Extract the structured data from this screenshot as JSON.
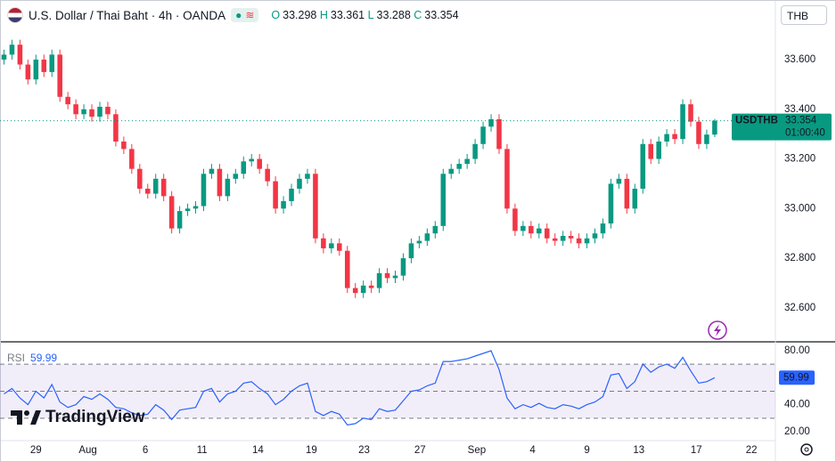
{
  "header": {
    "symbol": "U.S. Dollar / Thai Baht · 4h · OANDA",
    "currency": "THB",
    "ticker": "USDTHB",
    "countdown": "01:00:40",
    "brand": "TradingView",
    "ohlc_labels": [
      "O",
      "H",
      "L",
      "C"
    ]
  },
  "chart_data": [
    {
      "type": "candlestick",
      "open": [
        33.6,
        33.62,
        33.66,
        33.58,
        33.52,
        33.6,
        33.55,
        33.62,
        33.45,
        33.42,
        33.38,
        33.4,
        33.37,
        33.41,
        33.38,
        33.27,
        33.24,
        33.16,
        33.08,
        33.06,
        33.12,
        33.05,
        32.92,
        32.99,
        33.0,
        33.01,
        33.14,
        33.16,
        33.05,
        33.12,
        33.14,
        33.19,
        33.2,
        33.16,
        33.11,
        33.0,
        33.03,
        33.08,
        33.12,
        33.14,
        32.88,
        32.84,
        32.86,
        32.83,
        32.68,
        32.66,
        32.69,
        32.68,
        32.74,
        32.72,
        32.73,
        32.8,
        32.86,
        32.87,
        32.9,
        32.93,
        33.14,
        33.16,
        33.18,
        33.2,
        33.26,
        33.33,
        33.36,
        33.24,
        33.0,
        32.91,
        32.93,
        32.9,
        32.92,
        32.88,
        32.87,
        32.89,
        32.88,
        32.86,
        32.88,
        32.9,
        32.94,
        33.1,
        33.12,
        33.0,
        33.08,
        33.26,
        33.2,
        33.27,
        33.3,
        33.28,
        33.42,
        33.35,
        33.26,
        33.298
      ],
      "high": [
        33.64,
        33.68,
        33.68,
        33.6,
        33.62,
        33.62,
        33.64,
        33.64,
        33.47,
        33.44,
        33.42,
        33.42,
        33.43,
        33.43,
        33.4,
        33.29,
        33.26,
        33.18,
        33.1,
        33.14,
        33.14,
        33.07,
        33.01,
        33.02,
        33.03,
        33.16,
        33.18,
        33.18,
        33.14,
        33.16,
        33.21,
        33.22,
        33.22,
        33.18,
        33.13,
        33.05,
        33.1,
        33.14,
        33.16,
        33.16,
        32.9,
        32.88,
        32.88,
        32.85,
        32.7,
        32.71,
        32.71,
        32.76,
        32.76,
        32.75,
        32.82,
        32.88,
        32.89,
        32.92,
        32.95,
        33.16,
        33.18,
        33.2,
        33.22,
        33.28,
        33.35,
        33.38,
        33.38,
        33.26,
        33.02,
        32.95,
        32.95,
        32.94,
        32.94,
        32.9,
        32.91,
        32.91,
        32.9,
        32.9,
        32.92,
        32.96,
        33.12,
        33.14,
        33.14,
        33.1,
        33.28,
        33.28,
        33.29,
        33.32,
        33.32,
        33.44,
        33.44,
        33.37,
        33.318,
        33.361
      ],
      "low": [
        33.58,
        33.6,
        33.56,
        33.5,
        33.5,
        33.53,
        33.53,
        33.43,
        33.4,
        33.36,
        33.36,
        33.35,
        33.35,
        33.36,
        33.25,
        33.22,
        33.14,
        33.06,
        33.04,
        33.04,
        33.03,
        32.9,
        32.9,
        32.97,
        32.98,
        32.99,
        33.12,
        33.03,
        33.03,
        33.1,
        33.12,
        33.17,
        33.14,
        33.09,
        32.98,
        32.98,
        33.01,
        33.06,
        33.1,
        32.86,
        32.82,
        32.82,
        32.81,
        32.66,
        32.64,
        32.64,
        32.66,
        32.66,
        32.7,
        32.7,
        32.71,
        32.78,
        32.84,
        32.85,
        32.88,
        32.91,
        33.12,
        33.14,
        33.16,
        33.18,
        33.24,
        33.31,
        33.22,
        32.98,
        32.89,
        32.89,
        32.88,
        32.88,
        32.86,
        32.85,
        32.85,
        32.86,
        32.84,
        32.84,
        32.86,
        32.88,
        32.92,
        33.08,
        32.98,
        32.98,
        33.06,
        33.18,
        33.18,
        33.25,
        33.26,
        33.26,
        33.33,
        33.24,
        33.24,
        33.288
      ],
      "close": [
        33.62,
        33.66,
        33.58,
        33.52,
        33.6,
        33.55,
        33.62,
        33.45,
        33.42,
        33.38,
        33.4,
        33.37,
        33.41,
        33.38,
        33.27,
        33.24,
        33.16,
        33.08,
        33.06,
        33.12,
        33.05,
        32.92,
        32.99,
        33.0,
        33.01,
        33.14,
        33.16,
        33.05,
        33.12,
        33.14,
        33.19,
        33.2,
        33.16,
        33.11,
        33.0,
        33.03,
        33.08,
        33.12,
        33.14,
        32.88,
        32.84,
        32.86,
        32.83,
        32.68,
        32.66,
        32.69,
        32.68,
        32.74,
        32.72,
        32.73,
        32.8,
        32.86,
        32.87,
        32.9,
        32.93,
        33.14,
        33.16,
        33.18,
        33.2,
        33.26,
        33.33,
        33.36,
        33.24,
        33.0,
        32.91,
        32.93,
        32.9,
        32.92,
        32.88,
        32.87,
        32.89,
        32.88,
        32.86,
        32.88,
        32.9,
        32.94,
        33.1,
        33.12,
        33.0,
        33.08,
        33.26,
        33.2,
        33.27,
        33.3,
        33.28,
        33.42,
        33.35,
        33.26,
        33.298,
        33.354
      ],
      "up_color": "#089981",
      "down_color": "#f23645",
      "xlim": [
        -0.5,
        96.6
      ],
      "ylim": [
        32.467,
        33.84
      ],
      "yticks": [
        {
          "value": 32.6,
          "label": "32.600"
        },
        {
          "value": 32.8,
          "label": "32.800"
        },
        {
          "value": 33.0,
          "label": "33.000"
        },
        {
          "value": 33.2,
          "label": "33.200"
        },
        {
          "value": 33.4,
          "label": "33.400"
        },
        {
          "value": 33.6,
          "label": "33.600"
        }
      ],
      "xticks": [
        {
          "value": 4.0,
          "label": "29"
        },
        {
          "value": 10.5,
          "label": "Aug"
        },
        {
          "value": 17.7,
          "label": "6"
        },
        {
          "value": 24.8,
          "label": "11"
        },
        {
          "value": 31.8,
          "label": "14"
        },
        {
          "value": 38.5,
          "label": "19"
        },
        {
          "value": 45.1,
          "label": "23"
        },
        {
          "value": 52.1,
          "label": "27"
        },
        {
          "value": 59.2,
          "label": "Sep"
        },
        {
          "value": 66.2,
          "label": "4"
        },
        {
          "value": 73.0,
          "label": "9"
        },
        {
          "value": 79.5,
          "label": "13"
        },
        {
          "value": 86.7,
          "label": "17"
        },
        {
          "value": 93.6,
          "label": "22"
        }
      ]
    },
    {
      "type": "line",
      "name": "RSI",
      "color": "#2962ff",
      "values": [
        48,
        52,
        45,
        40,
        50,
        45,
        55,
        42,
        38,
        40,
        46,
        44,
        48,
        44,
        38,
        37,
        34,
        32,
        33,
        40,
        36,
        29,
        36,
        37,
        38,
        50,
        52,
        42,
        48,
        50,
        56,
        57,
        52,
        48,
        40,
        44,
        50,
        54,
        56,
        35,
        32,
        35,
        33,
        25,
        26,
        30,
        29,
        37,
        35,
        36,
        43,
        50,
        51,
        54,
        56,
        72,
        72,
        73,
        74,
        76,
        78,
        80,
        66,
        45,
        37,
        40,
        38,
        41,
        38,
        37,
        40,
        39,
        37,
        40,
        42,
        46,
        62,
        63,
        52,
        57,
        70,
        64,
        68,
        70,
        67,
        75,
        65,
        56,
        57,
        59.99
      ],
      "xlim": [
        -0.5,
        96.6
      ],
      "ylim": [
        13.4,
        85.9
      ],
      "yticks": [
        {
          "value": 20,
          "label": "20.00"
        },
        {
          "value": 40,
          "label": "40.00"
        },
        {
          "value": 60,
          "label": "60.00"
        },
        {
          "value": 80,
          "label": "80.00"
        }
      ],
      "levels": [
        30,
        50,
        70
      ],
      "band_color": "#7e57c2"
    }
  ]
}
